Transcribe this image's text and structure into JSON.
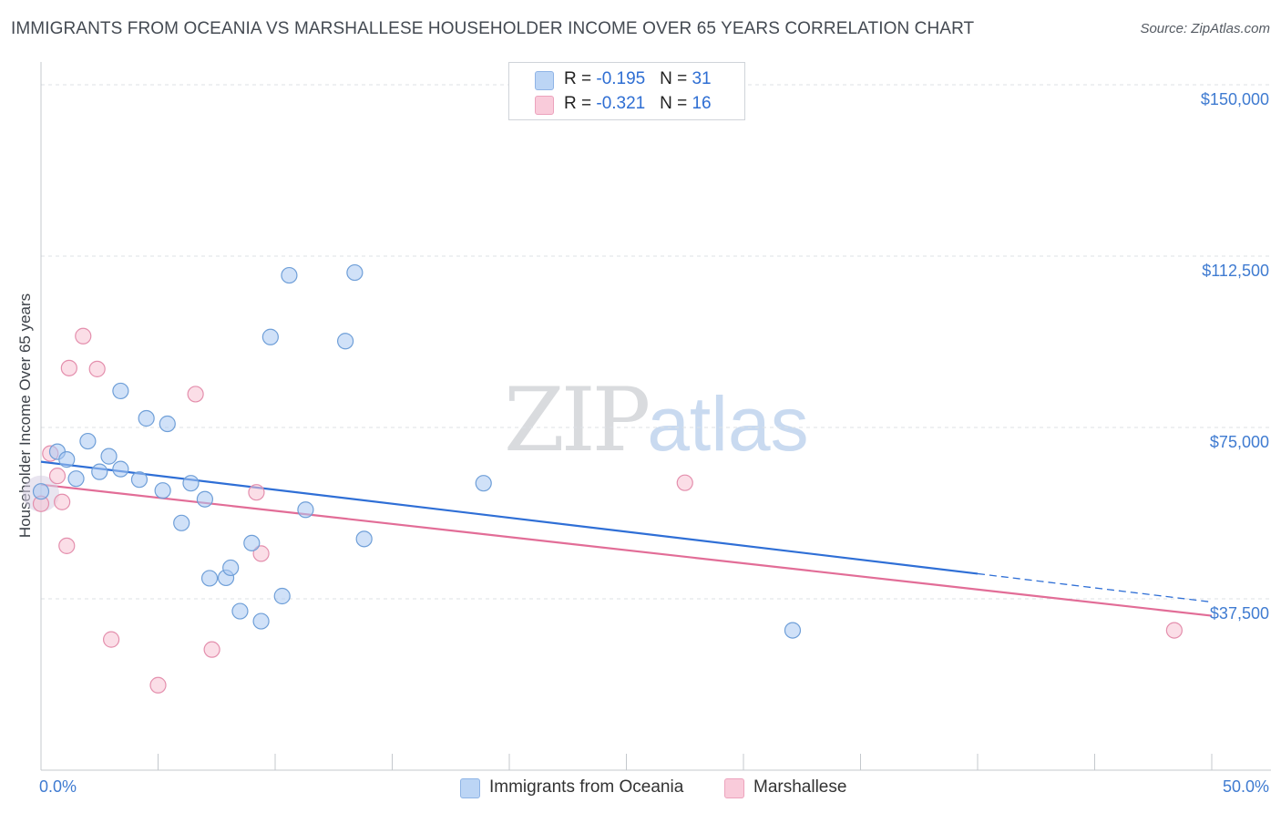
{
  "chart_data": {
    "type": "scatter",
    "title": "IMMIGRANTS FROM OCEANIA VS MARSHALLESE HOUSEHOLDER INCOME OVER 65 YEARS CORRELATION CHART",
    "source": "Source: ZipAtlas.com",
    "xlabel": "",
    "ylabel": "Householder Income Over 65 years",
    "xlim": [
      0,
      50
    ],
    "ylim": [
      0,
      153000
    ],
    "x_tick_labels": [
      "0.0%",
      "50.0%"
    ],
    "y_ticks": [
      {
        "value": 37500,
        "label": "$37,500"
      },
      {
        "value": 75000,
        "label": "$75,000"
      },
      {
        "value": 112500,
        "label": "$112,500"
      },
      {
        "value": 150000,
        "label": "$150,000"
      }
    ],
    "watermark": {
      "part1": "ZIP",
      "part2": "atlas"
    },
    "series": [
      {
        "name": "Immigrants from Oceania",
        "color": "#a9c9f2",
        "stroke": "#6f9fd8",
        "line_color": "#2f6fd6",
        "R": "-0.195",
        "N": "31",
        "trend": {
          "x0": 0,
          "y0": 67500,
          "x1": 40,
          "y1": 43000,
          "dash_to_x": 50,
          "dash_to_y": 36800
        },
        "points": [
          [
            0.0,
            61000
          ],
          [
            0.7,
            69700
          ],
          [
            1.1,
            68000
          ],
          [
            1.5,
            63800
          ],
          [
            2.0,
            72000
          ],
          [
            2.5,
            65300
          ],
          [
            2.9,
            68700
          ],
          [
            3.4,
            65900
          ],
          [
            3.4,
            83000
          ],
          [
            4.2,
            63600
          ],
          [
            4.5,
            77000
          ],
          [
            5.2,
            61200
          ],
          [
            5.4,
            75800
          ],
          [
            6.0,
            54100
          ],
          [
            6.4,
            62800
          ],
          [
            7.0,
            59300
          ],
          [
            7.2,
            42000
          ],
          [
            7.9,
            42100
          ],
          [
            8.1,
            44300
          ],
          [
            8.5,
            34800
          ],
          [
            9.0,
            49700
          ],
          [
            9.4,
            32600
          ],
          [
            9.8,
            94800
          ],
          [
            10.3,
            38100
          ],
          [
            10.6,
            108300
          ],
          [
            11.3,
            57000
          ],
          [
            13.0,
            93900
          ],
          [
            13.4,
            108900
          ],
          [
            13.8,
            50600
          ],
          [
            18.9,
            62800
          ],
          [
            32.1,
            30600
          ]
        ]
      },
      {
        "name": "Marshallese",
        "color": "#f7c2d3",
        "stroke": "#e48fad",
        "line_color": "#e26d97",
        "R": "-0.321",
        "N": "16",
        "trend": {
          "x0": 0,
          "y0": 62500,
          "x1": 50,
          "y1": 33800
        },
        "points": [
          [
            0.0,
            58300
          ],
          [
            0.4,
            69300
          ],
          [
            0.7,
            64400
          ],
          [
            0.9,
            58700
          ],
          [
            1.1,
            49100
          ],
          [
            1.2,
            88000
          ],
          [
            1.8,
            95000
          ],
          [
            2.4,
            87800
          ],
          [
            3.0,
            28600
          ],
          [
            5.0,
            18600
          ],
          [
            6.6,
            82300
          ],
          [
            7.3,
            26400
          ],
          [
            9.2,
            60800
          ],
          [
            9.4,
            47400
          ],
          [
            27.5,
            62900
          ],
          [
            48.4,
            30600
          ]
        ]
      }
    ]
  }
}
